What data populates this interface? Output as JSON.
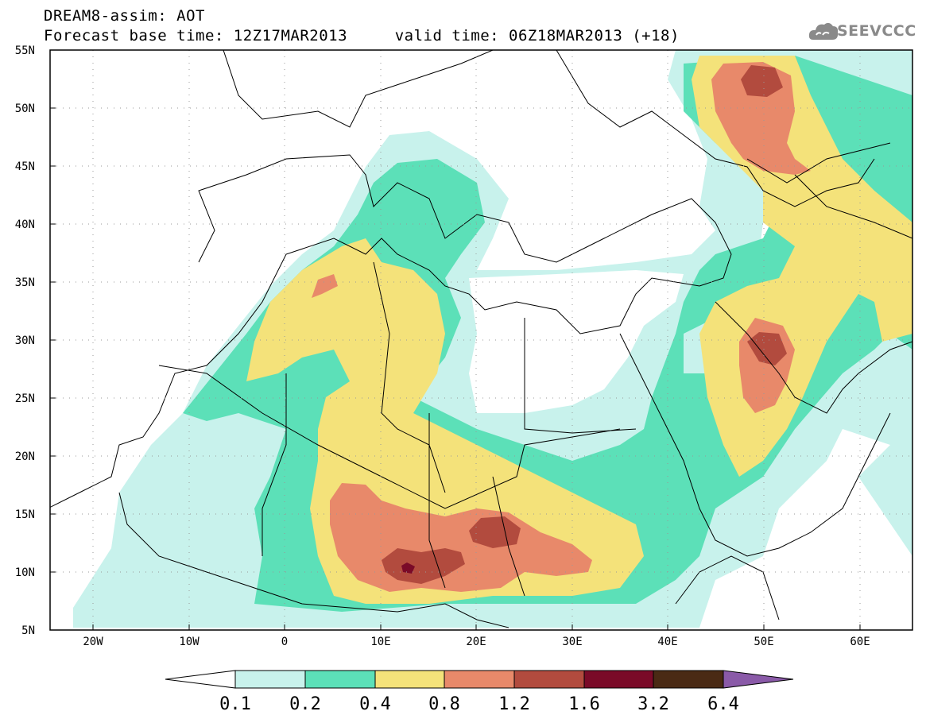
{
  "header": {
    "line1": "DREAM8-assim: AOT",
    "line2": "Forecast base time: 12Z17MAR2013     valid time: 06Z18MAR2013 (+18)"
  },
  "logo": {
    "text": "SEEVCCC",
    "icon": "cloud-icon",
    "color": "#8a8a8a"
  },
  "map": {
    "lon_range": [
      -25,
      65
    ],
    "lat_range": [
      5,
      55
    ],
    "lon_ticks": [
      "20W",
      "10W",
      "0",
      "10E",
      "20E",
      "30E",
      "40E",
      "50E",
      "60E"
    ],
    "lat_ticks": [
      "5N",
      "10N",
      "15N",
      "20N",
      "25N",
      "30N",
      "35N",
      "40N",
      "45N",
      "50N",
      "55N"
    ],
    "grid": "dotted"
  },
  "colorbar": {
    "labels": [
      "0.1",
      "0.2",
      "0.4",
      "0.8",
      "1.2",
      "1.6",
      "3.2",
      "6.4"
    ],
    "colors": [
      "#c8f2ec",
      "#5ce0b8",
      "#f4e27a",
      "#e8896a",
      "#b24b3e",
      "#7a0a28",
      "#4a2a14",
      "#8a5aa8"
    ],
    "extend": "both"
  }
}
